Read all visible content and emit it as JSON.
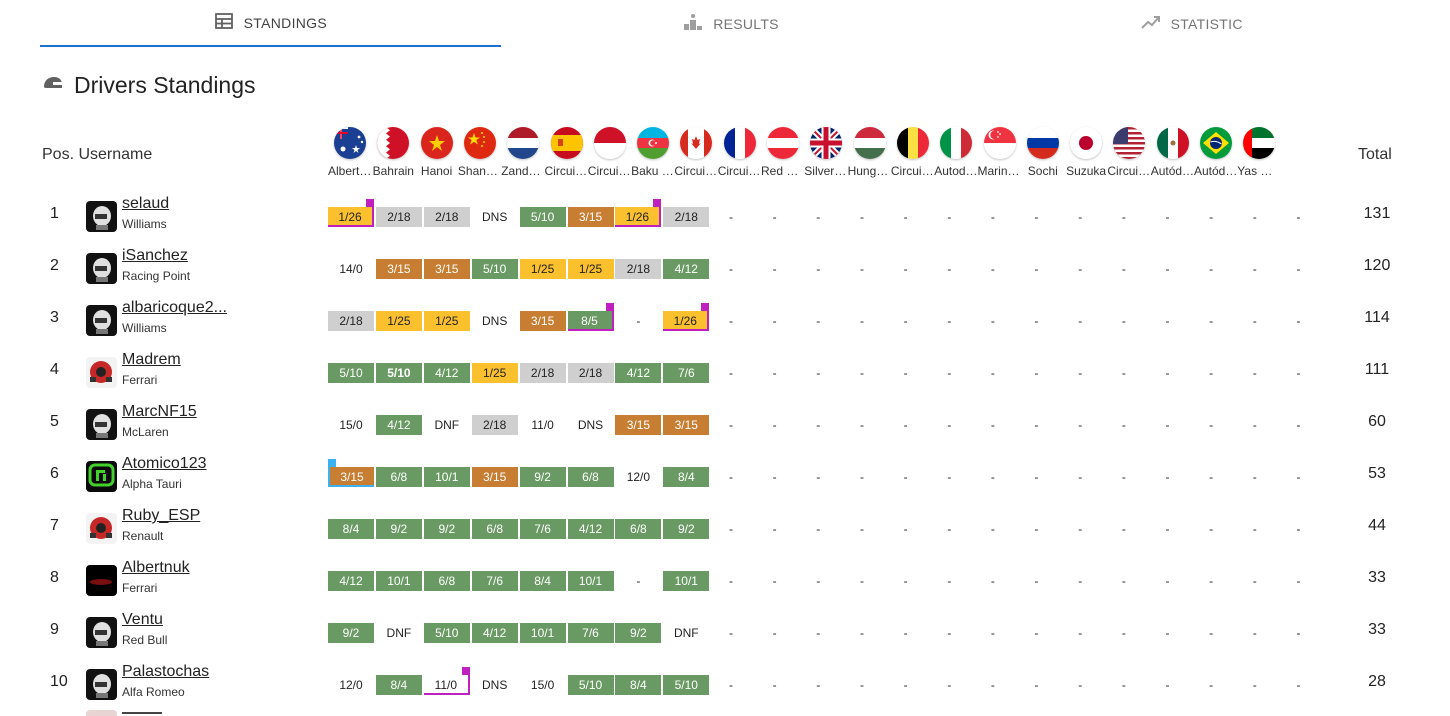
{
  "tabs": [
    {
      "label": "STANDINGS",
      "icon": "table-icon",
      "active": true
    },
    {
      "label": "RESULTS",
      "icon": "podium-icon",
      "active": false
    },
    {
      "label": "STATISTIC",
      "icon": "trending-up-icon",
      "active": false
    }
  ],
  "page_title": "Drivers Standings",
  "headers": {
    "pos_username": "Pos. Username",
    "total": "Total"
  },
  "races": [
    {
      "name": "Albert Park",
      "flag": "australia"
    },
    {
      "name": "Bahrain",
      "flag": "bahrain"
    },
    {
      "name": "Hanoi",
      "flag": "vietnam"
    },
    {
      "name": "Shanghai",
      "flag": "china"
    },
    {
      "name": "Zandvoort",
      "flag": "netherlands"
    },
    {
      "name": "Circuit de Barcelona",
      "flag": "spain"
    },
    {
      "name": "Circuit de Monaco",
      "flag": "monaco"
    },
    {
      "name": "Baku City",
      "flag": "azerbaijan"
    },
    {
      "name": "Circuit Gilles Villeneuve",
      "flag": "canada"
    },
    {
      "name": "Circuit Paul Ricard",
      "flag": "france"
    },
    {
      "name": "Red Bull Ring",
      "flag": "austria"
    },
    {
      "name": "Silverstone",
      "flag": "uk"
    },
    {
      "name": "Hungaroring",
      "flag": "hungary"
    },
    {
      "name": "Circuit de Spa",
      "flag": "belgium"
    },
    {
      "name": "Autodromo Monza",
      "flag": "italy"
    },
    {
      "name": "Marina Bay",
      "flag": "singapore"
    },
    {
      "name": "Sochi",
      "flag": "russia"
    },
    {
      "name": "Suzuka",
      "flag": "japan"
    },
    {
      "name": "Circuit of the Americas",
      "flag": "usa"
    },
    {
      "name": "Autódromo Hermanos Rodríguez",
      "flag": "mexico"
    },
    {
      "name": "Autódromo Interlagos",
      "flag": "brazil"
    },
    {
      "name": "Yas Marina",
      "flag": "uae"
    }
  ],
  "rows": [
    {
      "pos": "1",
      "username": "selaud",
      "team": "Williams",
      "total": "131",
      "avatar": "helmet-avatar",
      "results": [
        {
          "t": "1/26",
          "c": "gold",
          "pole": true
        },
        {
          "t": "2/18",
          "c": "silver"
        },
        {
          "t": "2/18",
          "c": "silver"
        },
        {
          "t": "DNS",
          "c": "plain"
        },
        {
          "t": "5/10",
          "c": "green"
        },
        {
          "t": "3/15",
          "c": "bronze"
        },
        {
          "t": "1/26",
          "c": "gold",
          "pole": true
        },
        {
          "t": "2/18",
          "c": "silver"
        }
      ]
    },
    {
      "pos": "2",
      "username": "iSanchez",
      "team": "Racing Point",
      "total": "120",
      "avatar": "helmet-avatar",
      "results": [
        {
          "t": "14/0",
          "c": "plain"
        },
        {
          "t": "3/15",
          "c": "bronze"
        },
        {
          "t": "3/15",
          "c": "bronze"
        },
        {
          "t": "5/10",
          "c": "green"
        },
        {
          "t": "1/25",
          "c": "gold"
        },
        {
          "t": "1/25",
          "c": "gold"
        },
        {
          "t": "2/18",
          "c": "silver"
        },
        {
          "t": "4/12",
          "c": "green"
        }
      ]
    },
    {
      "pos": "3",
      "username": "albaricoque2...",
      "team": "Williams",
      "total": "114",
      "avatar": "helmet-avatar",
      "results": [
        {
          "t": "2/18",
          "c": "silver"
        },
        {
          "t": "1/25",
          "c": "gold"
        },
        {
          "t": "1/25",
          "c": "gold"
        },
        {
          "t": "DNS",
          "c": "plain"
        },
        {
          "t": "3/15",
          "c": "bronze"
        },
        {
          "t": "8/5",
          "c": "green",
          "pole": true
        },
        {
          "t": "-",
          "c": "plain"
        },
        {
          "t": "1/26",
          "c": "gold",
          "pole": true
        }
      ]
    },
    {
      "pos": "4",
      "username": "Madrem",
      "team": "Ferrari",
      "total": "111",
      "avatar": "car-avatar",
      "results": [
        {
          "t": "5/10",
          "c": "green"
        },
        {
          "t": "5/10",
          "c": "green",
          "bold": true
        },
        {
          "t": "4/12",
          "c": "green"
        },
        {
          "t": "1/25",
          "c": "gold"
        },
        {
          "t": "2/18",
          "c": "silver"
        },
        {
          "t": "2/18",
          "c": "silver"
        },
        {
          "t": "4/12",
          "c": "green"
        },
        {
          "t": "7/6",
          "c": "green"
        }
      ]
    },
    {
      "pos": "5",
      "username": "MarcNF15",
      "team": "McLaren",
      "total": "60",
      "avatar": "helmet-avatar",
      "results": [
        {
          "t": "15/0",
          "c": "plain"
        },
        {
          "t": "4/12",
          "c": "green"
        },
        {
          "t": "DNF",
          "c": "plain"
        },
        {
          "t": "2/18",
          "c": "silver"
        },
        {
          "t": "11/0",
          "c": "plain"
        },
        {
          "t": "DNS",
          "c": "plain"
        },
        {
          "t": "3/15",
          "c": "bronze"
        },
        {
          "t": "3/15",
          "c": "bronze"
        }
      ]
    },
    {
      "pos": "6",
      "username": "Atomico123",
      "team": "Alpha Tauri",
      "total": "53",
      "avatar": "logo-avatar",
      "results": [
        {
          "t": "3/15",
          "c": "bronze",
          "fast": true
        },
        {
          "t": "6/8",
          "c": "green"
        },
        {
          "t": "10/1",
          "c": "green"
        },
        {
          "t": "3/15",
          "c": "bronze"
        },
        {
          "t": "9/2",
          "c": "green"
        },
        {
          "t": "6/8",
          "c": "green"
        },
        {
          "t": "12/0",
          "c": "plain"
        },
        {
          "t": "8/4",
          "c": "green"
        }
      ]
    },
    {
      "pos": "7",
      "username": "Ruby_ESP",
      "team": "Renault",
      "total": "44",
      "avatar": "car-avatar",
      "results": [
        {
          "t": "8/4",
          "c": "green"
        },
        {
          "t": "9/2",
          "c": "green"
        },
        {
          "t": "9/2",
          "c": "green"
        },
        {
          "t": "6/8",
          "c": "green"
        },
        {
          "t": "7/6",
          "c": "green"
        },
        {
          "t": "4/12",
          "c": "green"
        },
        {
          "t": "6/8",
          "c": "green"
        },
        {
          "t": "9/2",
          "c": "green"
        }
      ]
    },
    {
      "pos": "8",
      "username": "Albertnuk",
      "team": "Ferrari",
      "total": "33",
      "avatar": "dark-avatar",
      "results": [
        {
          "t": "4/12",
          "c": "green"
        },
        {
          "t": "10/1",
          "c": "green"
        },
        {
          "t": "6/8",
          "c": "green"
        },
        {
          "t": "7/6",
          "c": "green"
        },
        {
          "t": "8/4",
          "c": "green"
        },
        {
          "t": "10/1",
          "c": "green"
        },
        {
          "t": "-",
          "c": "plain"
        },
        {
          "t": "10/1",
          "c": "green"
        }
      ]
    },
    {
      "pos": "9",
      "username": "Ventu",
      "team": "Red Bull",
      "total": "33",
      "avatar": "helmet-avatar",
      "results": [
        {
          "t": "9/2",
          "c": "green"
        },
        {
          "t": "DNF",
          "c": "plain"
        },
        {
          "t": "5/10",
          "c": "green"
        },
        {
          "t": "4/12",
          "c": "green"
        },
        {
          "t": "10/1",
          "c": "green"
        },
        {
          "t": "7/6",
          "c": "green"
        },
        {
          "t": "9/2",
          "c": "green"
        },
        {
          "t": "DNF",
          "c": "plain"
        }
      ]
    },
    {
      "pos": "10",
      "username": "Palastochas",
      "team": "Alfa Romeo",
      "total": "28",
      "avatar": "helmet-avatar",
      "results": [
        {
          "t": "12/0",
          "c": "plain"
        },
        {
          "t": "8/4",
          "c": "green"
        },
        {
          "t": "11/0",
          "c": "plain",
          "pole": true
        },
        {
          "t": "DNS",
          "c": "plain"
        },
        {
          "t": "15/0",
          "c": "plain"
        },
        {
          "t": "5/10",
          "c": "green"
        },
        {
          "t": "8/4",
          "c": "green"
        },
        {
          "t": "5/10",
          "c": "green"
        }
      ]
    }
  ],
  "empty_result": "-",
  "colors": {
    "gold": "#fbc02d",
    "silver": "#cfcfcf",
    "bronze": "#c77d32",
    "points": "#6a9a63",
    "pole_marker": "#c020c0",
    "fastest_lap_marker": "#3db0f0",
    "tab_underline": "#1e6fd0"
  }
}
